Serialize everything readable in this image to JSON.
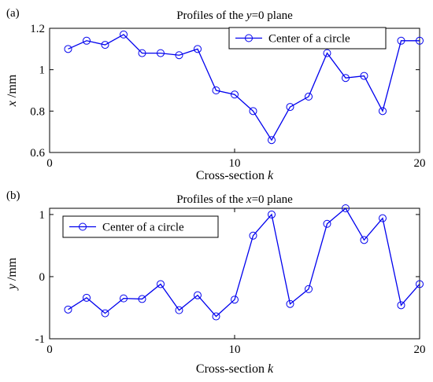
{
  "chart_data": [
    {
      "type": "line",
      "panel_label": "(a)",
      "title_prefix": "Profiles of the ",
      "title_var": "y",
      "title_suffix": "=0 plane",
      "xlabel_text": "Cross-section ",
      "xlabel_var": "k",
      "ylabel_var": "x",
      "ylabel_unit": " /mm",
      "xlim": [
        0,
        20
      ],
      "ylim": [
        0.6,
        1.2
      ],
      "xticks": [
        0,
        10,
        20
      ],
      "yticks": [
        0.6,
        0.8,
        1,
        1.2
      ],
      "ytick_labels": [
        "0.6",
        "0.8",
        "1",
        "1.2"
      ],
      "legend_position": "top-right",
      "grid": false,
      "series": [
        {
          "name": "Center of a circle",
          "color": "#0000ee",
          "marker": "circle",
          "x": [
            1,
            2,
            3,
            4,
            5,
            6,
            7,
            8,
            9,
            10,
            11,
            12,
            13,
            14,
            15,
            16,
            17,
            18,
            19,
            20
          ],
          "values": [
            1.1,
            1.14,
            1.12,
            1.17,
            1.08,
            1.08,
            1.07,
            1.1,
            0.9,
            0.88,
            0.8,
            0.66,
            0.82,
            0.87,
            1.08,
            0.96,
            0.97,
            0.8,
            1.14,
            1.14
          ]
        }
      ]
    },
    {
      "type": "line",
      "panel_label": "(b)",
      "title_prefix": "Profiles of the ",
      "title_var": "x",
      "title_suffix": "=0 plane",
      "xlabel_text": "Cross-section ",
      "xlabel_var": "k",
      "ylabel_var": "y",
      "ylabel_unit": " /mm",
      "xlim": [
        0,
        20
      ],
      "ylim": [
        -1,
        1.1
      ],
      "xticks": [
        0,
        10,
        20
      ],
      "yticks": [
        -1,
        0,
        1
      ],
      "ytick_labels": [
        "-1",
        "0",
        "1"
      ],
      "legend_position": "top-left",
      "grid": false,
      "series": [
        {
          "name": "Center of a circle",
          "color": "#0000ee",
          "marker": "circle",
          "x": [
            1,
            2,
            3,
            4,
            5,
            6,
            7,
            8,
            9,
            10,
            11,
            12,
            13,
            14,
            15,
            16,
            17,
            18,
            19,
            20
          ],
          "values": [
            -0.53,
            -0.34,
            -0.59,
            -0.35,
            -0.36,
            -0.12,
            -0.54,
            -0.3,
            -0.64,
            -0.37,
            0.66,
            1.0,
            -0.44,
            -0.2,
            0.85,
            1.1,
            0.59,
            0.94,
            -0.46,
            -0.12
          ]
        }
      ]
    }
  ]
}
